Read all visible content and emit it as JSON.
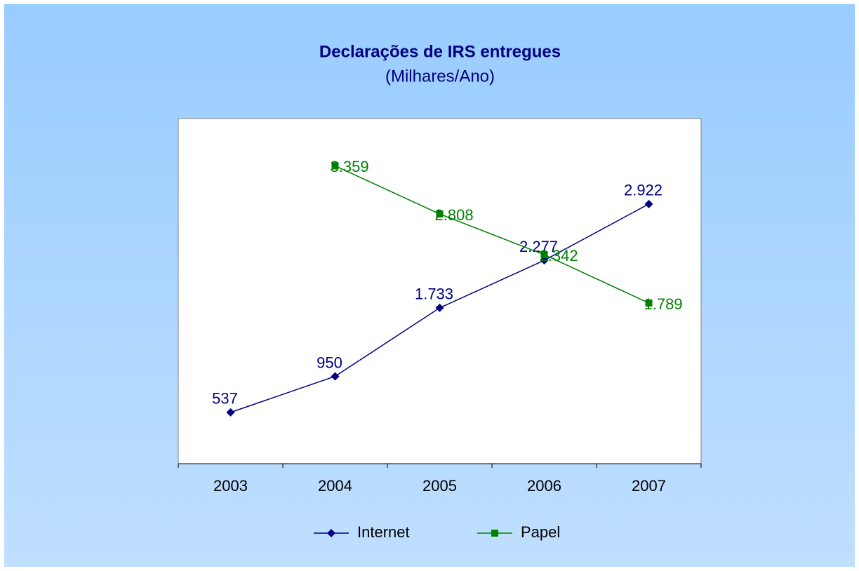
{
  "chart_data": {
    "type": "line",
    "title": "Declarações de IRS entregues",
    "subtitle": "(Milhares/Ano)",
    "categories": [
      "2003",
      "2004",
      "2005",
      "2006",
      "2007"
    ],
    "ylim": [
      -50,
      3900
    ],
    "series": [
      {
        "name": "Internet",
        "color": "#000080",
        "marker": "diamond",
        "values": [
          537,
          950,
          1733,
          2277,
          2922
        ],
        "value_labels": [
          "537",
          "950",
          "1.733",
          "2.277",
          "2.922"
        ]
      },
      {
        "name": "Papel",
        "color": "#008000",
        "marker": "square",
        "values": [
          null,
          3359,
          2808,
          2342,
          1789
        ],
        "value_labels": [
          null,
          "3.359",
          "2.808",
          "2.342",
          "1.789"
        ]
      }
    ]
  }
}
